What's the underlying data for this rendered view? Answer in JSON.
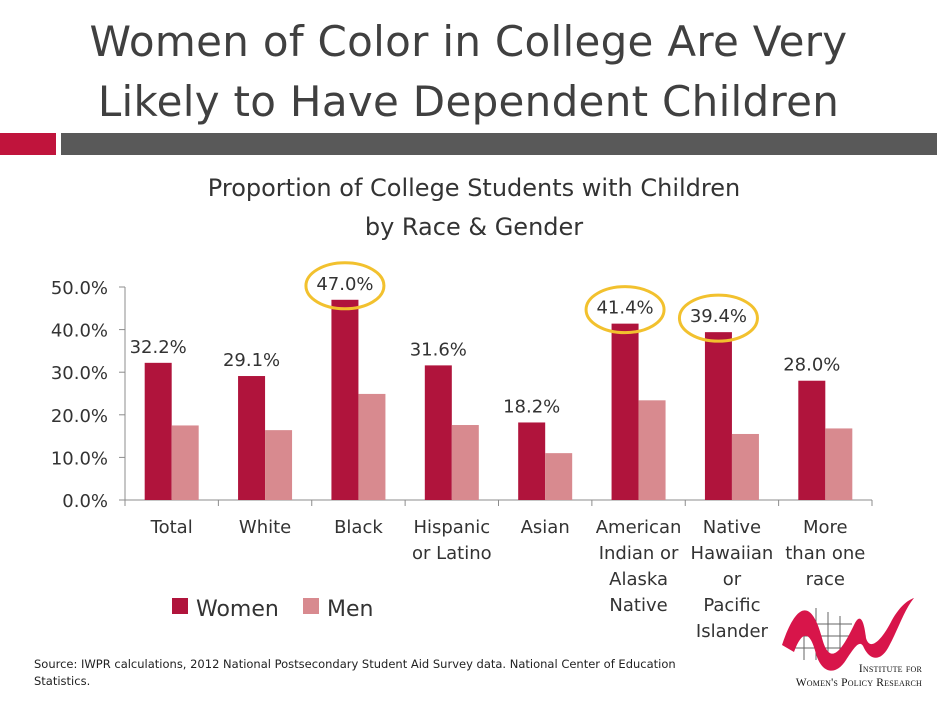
{
  "slide": {
    "title_line1": "Women of Color in College Are Very",
    "title_line2": "Likely to Have Dependent Children",
    "source_line1": "Source: IWPR calculations, 2012 National Postsecondary Student Aid Survey data. National Center of Education",
    "source_line2": "Statistics.",
    "logo_line1": "Institute for",
    "logo_line2": "Women's Policy Research"
  },
  "colors": {
    "women": "#b0143c",
    "men": "#d88a8f",
    "highlight": "#f2c12e",
    "accent_red": "#c0143c",
    "accent_gray": "#595959"
  },
  "chart_data": {
    "type": "bar",
    "title": [
      "Proportion of College Students with Children",
      "by Race & Gender"
    ],
    "categories": [
      [
        "Total"
      ],
      [
        "White"
      ],
      [
        "Black"
      ],
      [
        "Hispanic",
        "or Latino"
      ],
      [
        "Asian"
      ],
      [
        "American",
        "Indian or",
        "Alaska",
        "Native"
      ],
      [
        "Native",
        "Hawaiian",
        "or",
        "Pacific",
        "Islander"
      ],
      [
        "More",
        "than one",
        "race"
      ]
    ],
    "series": [
      {
        "name": "Women",
        "values": [
          32.2,
          29.1,
          47.0,
          31.6,
          18.2,
          41.4,
          39.4,
          28.0
        ],
        "labels": [
          "32.2%",
          "29.1%",
          "47.0%",
          "31.6%",
          "18.2%",
          "41.4%",
          "39.4%",
          "28.0%"
        ]
      },
      {
        "name": "Men",
        "values": [
          17.5,
          16.4,
          24.9,
          17.6,
          11.0,
          23.4,
          15.5,
          16.8
        ]
      }
    ],
    "highlighted_labels": [
      2,
      5,
      6
    ],
    "ylim": [
      0,
      50
    ],
    "yticks": [
      "0.0%",
      "10.0%",
      "20.0%",
      "30.0%",
      "40.0%",
      "50.0%"
    ],
    "legend_position": "bottom-left",
    "grid": false
  }
}
